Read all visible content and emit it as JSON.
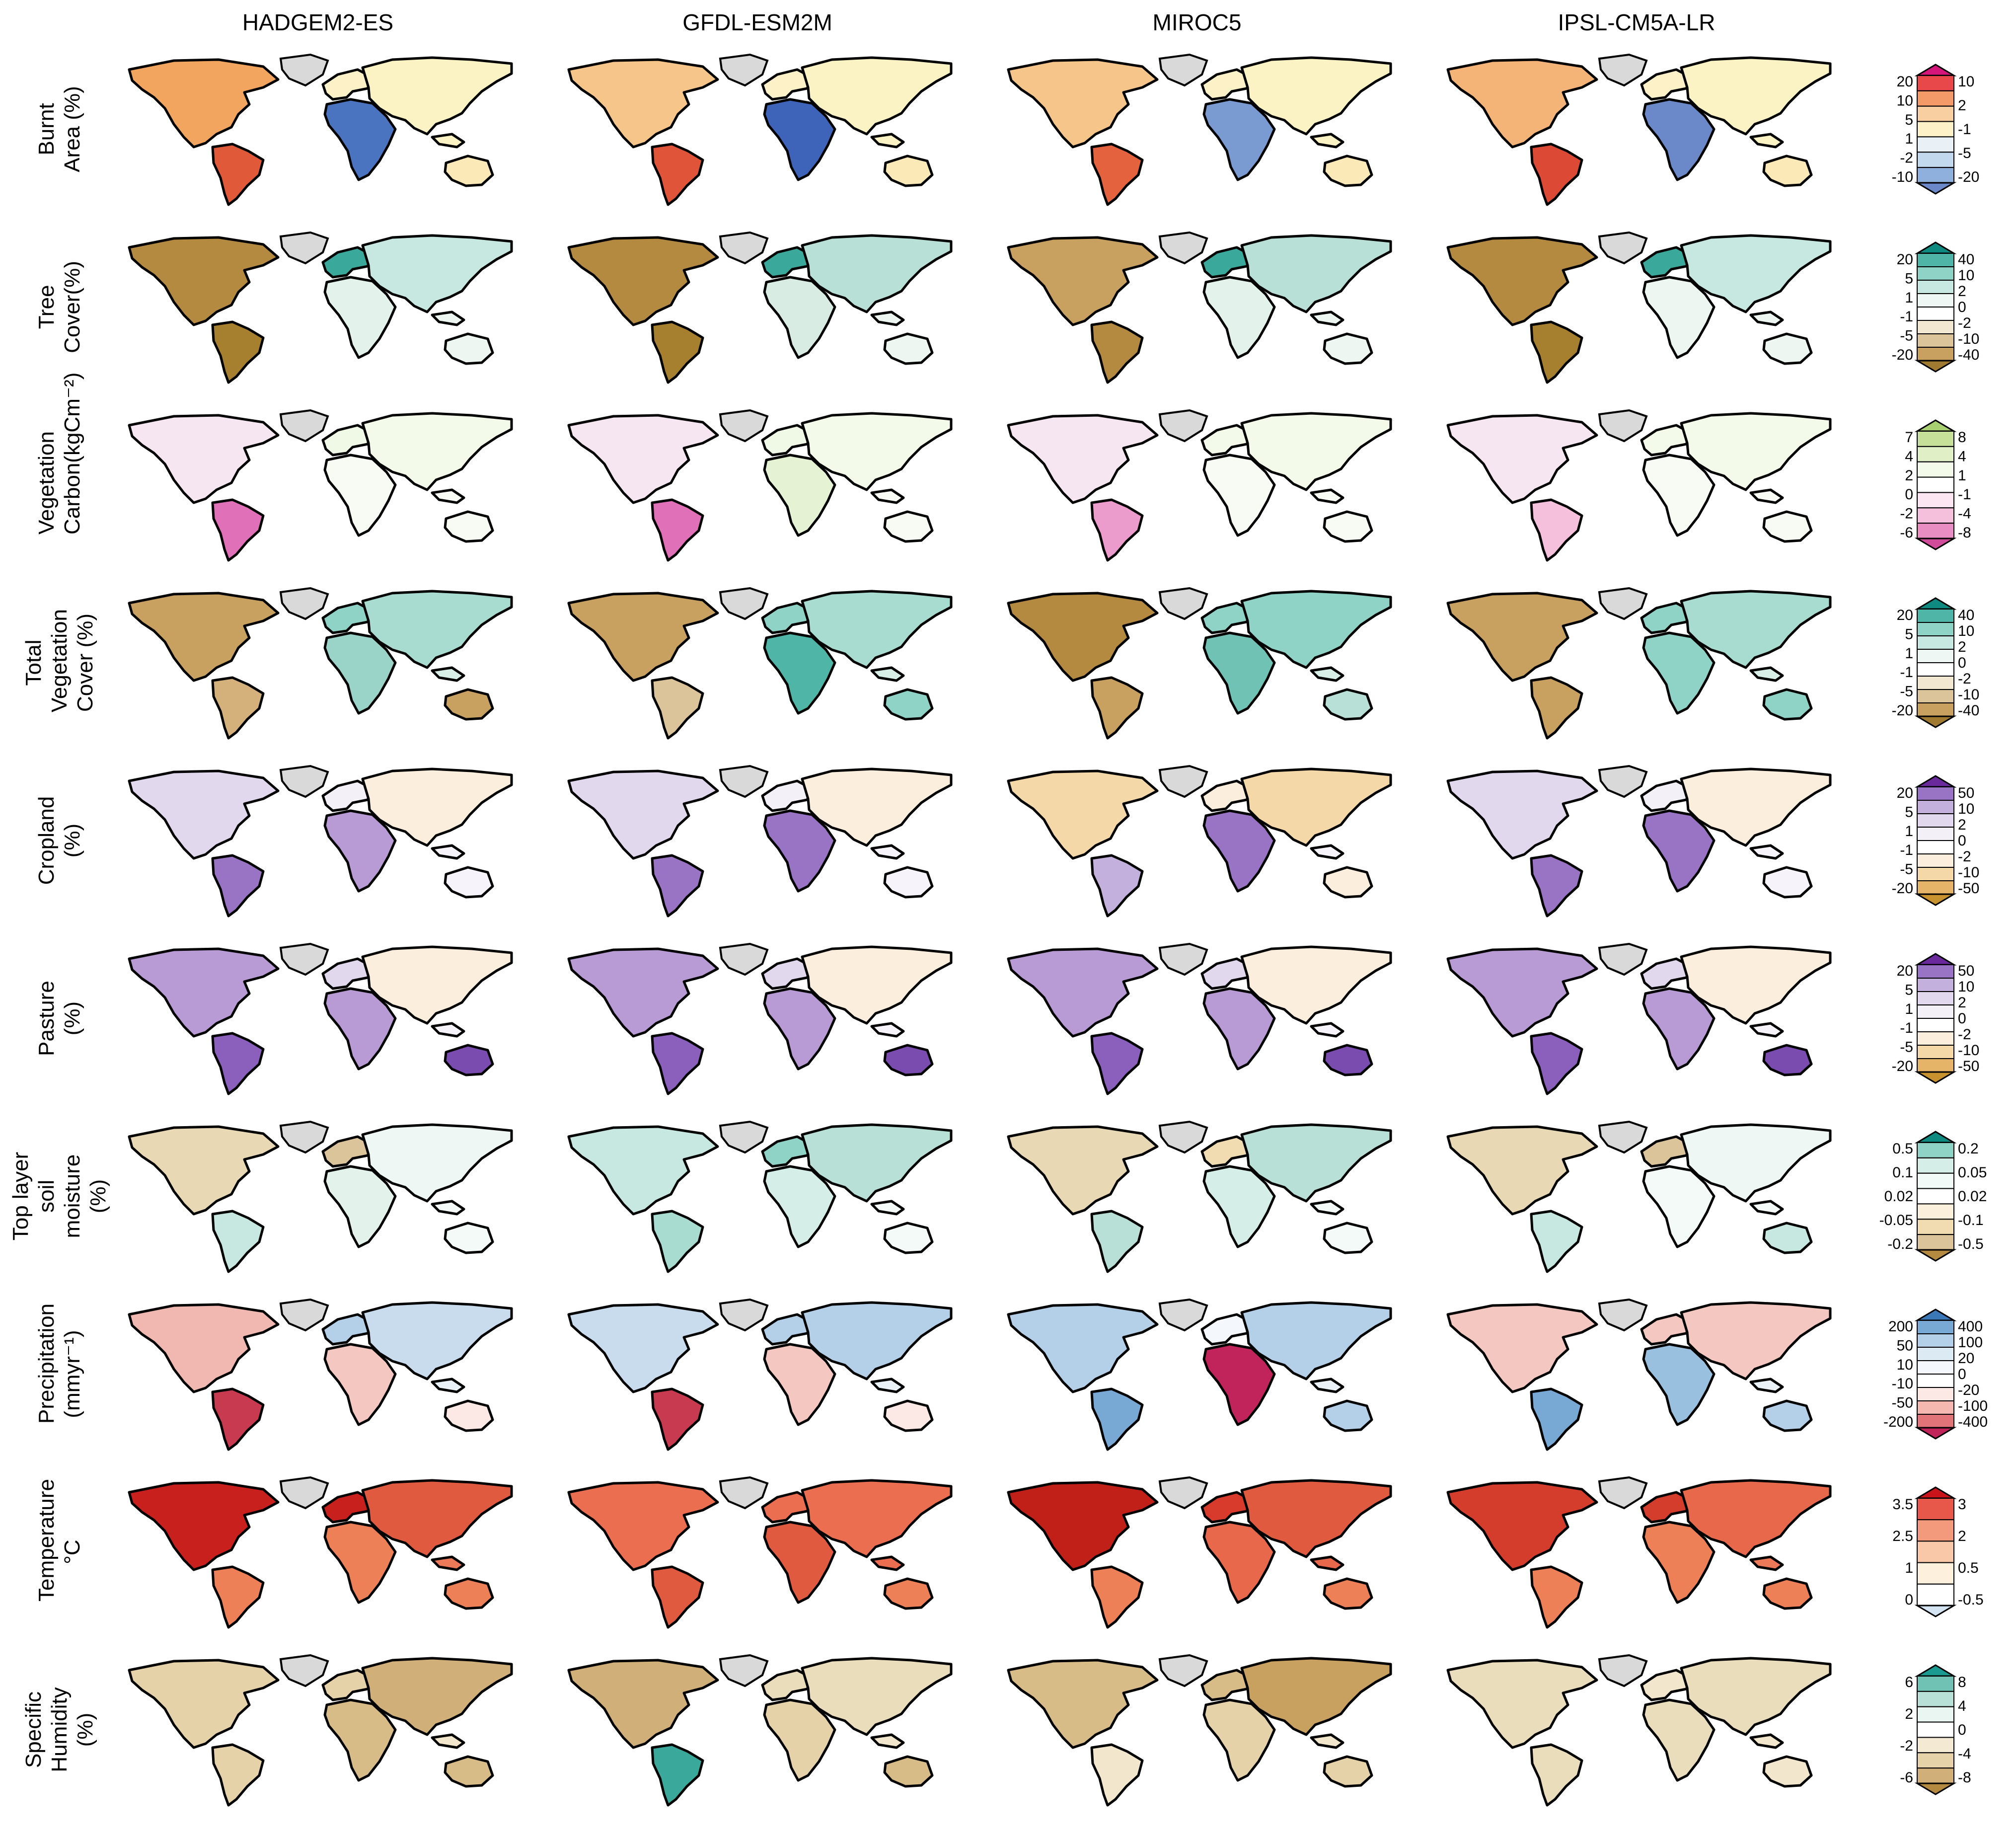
{
  "columns": [
    "HADGEM2-ES",
    "GFDL-ESM2M",
    "MIROC5",
    "IPSL-CM5A-LR"
  ],
  "rows": [
    {
      "label_lines": [
        "Burnt",
        "Area (%)"
      ],
      "legend": {
        "left": [
          "20",
          "10",
          "5",
          "1",
          "-2",
          "-10"
        ],
        "right": [
          "10",
          "2",
          "-1",
          "-5",
          "-20"
        ],
        "colors": [
          "#d4157a",
          "#e8484a",
          "#f39a68",
          "#f7cfa0",
          "#fdf1c8",
          "#e9f0f6",
          "#c2d8ec",
          "#8fb0dc",
          "#6b88c8"
        ]
      },
      "maps": [
        {
          "base": "#fcf3c4",
          "na": "#f2a55e",
          "sa": "#e05a3a",
          "af": "#4a74c0",
          "eu": "#fdf1c8",
          "asia": "#fcf3c4",
          "au": "#fbe9b8"
        },
        {
          "base": "#fcf3c4",
          "na": "#f6c58a",
          "sa": "#e0553a",
          "af": "#3d64b8",
          "eu": "#fdf1c8",
          "asia": "#fcf3c4",
          "au": "#fbe9b8"
        },
        {
          "base": "#fcf3c4",
          "na": "#f6c58a",
          "sa": "#e4633e",
          "af": "#7a9bd2",
          "eu": "#fdf1c8",
          "asia": "#fcf3c4",
          "au": "#fbe9b8"
        },
        {
          "base": "#fcf3c4",
          "na": "#f4b478",
          "sa": "#dc4a35",
          "af": "#6b88c8",
          "eu": "#fdf1c8",
          "asia": "#fcf3c4",
          "au": "#fbe9b8"
        }
      ]
    },
    {
      "label_lines": [
        "Tree",
        "Cover(%)"
      ],
      "legend": {
        "left": [
          "20",
          "5",
          "1",
          "-1",
          "-5",
          "-20"
        ],
        "right": [
          "40",
          "10",
          "2",
          "0",
          "-2",
          "-10",
          "-40"
        ],
        "colors": [
          "#0f8a80",
          "#4fb5a6",
          "#8fd2c6",
          "#c6e8e0",
          "#eef7f4",
          "#ffffff",
          "#f2e8d2",
          "#dcc49a",
          "#c8a060",
          "#a07a30"
        ]
      },
      "maps": [
        {
          "base": "#eef6f2",
          "na": "#b48a40",
          "sa": "#a6802e",
          "af": "#e4f2ec",
          "eu": "#3aa89a",
          "asia": "#c6e8e0",
          "au": "#eef6f2"
        },
        {
          "base": "#eef6f2",
          "na": "#b48a40",
          "sa": "#a6802e",
          "af": "#d8ece4",
          "eu": "#3aa89a",
          "asia": "#b8e0d6",
          "au": "#eef6f2"
        },
        {
          "base": "#eef6f2",
          "na": "#c8a060",
          "sa": "#b48a40",
          "af": "#e4f2ec",
          "eu": "#3aa89a",
          "asia": "#b8e0d6",
          "au": "#eef6f2"
        },
        {
          "base": "#eef6f2",
          "na": "#b48a40",
          "sa": "#a6802e",
          "af": "#eef6f2",
          "eu": "#3aa89a",
          "asia": "#c6e8e0",
          "au": "#eef6f2"
        }
      ]
    },
    {
      "label_lines": [
        "Vegetation",
        "Carbon(kgCm⁻²)"
      ],
      "legend": {
        "left": [
          "7",
          "4",
          "2",
          "0",
          "-2",
          "-6"
        ],
        "right": [
          "8",
          "4",
          "1",
          "-1",
          "-4",
          "-8"
        ],
        "colors": [
          "#a8d070",
          "#c6e09a",
          "#e0efc6",
          "#f4faea",
          "#ffffff",
          "#fbe6f2",
          "#f4c0dc",
          "#e88ec2",
          "#d04c9a"
        ]
      },
      "maps": [
        {
          "base": "#f8faf4",
          "na": "#f6e6f2",
          "sa": "#e070b8",
          "af": "#f8faf4",
          "eu": "#f0f8e6",
          "asia": "#f4faea",
          "au": "#f8faf4"
        },
        {
          "base": "#f8faf4",
          "na": "#f6e6f2",
          "sa": "#e070b8",
          "af": "#e6f2d4",
          "eu": "#f0f8e6",
          "asia": "#f4faea",
          "au": "#f8faf4"
        },
        {
          "base": "#f8faf4",
          "na": "#f6e6f2",
          "sa": "#ec9ccc",
          "af": "#f8faf4",
          "eu": "#f4faea",
          "asia": "#f4faea",
          "au": "#f8faf4"
        },
        {
          "base": "#f8faf4",
          "na": "#f6e6f2",
          "sa": "#f4c0dc",
          "af": "#f8faf4",
          "eu": "#f4faea",
          "asia": "#f4faea",
          "au": "#f8faf4"
        }
      ]
    },
    {
      "label_lines": [
        "Total Vegetation",
        "Cover (%)"
      ],
      "legend": {
        "left": [
          "20",
          "5",
          "1",
          "-1",
          "-5",
          "-20"
        ],
        "right": [
          "40",
          "10",
          "2",
          "0",
          "-2",
          "-10",
          "-40"
        ],
        "colors": [
          "#0f8a80",
          "#4fb5a6",
          "#8fd2c6",
          "#c6e8e0",
          "#eef7f4",
          "#ffffff",
          "#f2e8d2",
          "#dcc49a",
          "#c8a060",
          "#a07a30"
        ]
      },
      "maps": [
        {
          "base": "#d8efe8",
          "na": "#c8a060",
          "sa": "#d4b07a",
          "af": "#9ad4c8",
          "eu": "#8fd2c6",
          "asia": "#a8dcd0",
          "au": "#c8a060"
        },
        {
          "base": "#d8efe8",
          "na": "#c8a060",
          "sa": "#dcc49a",
          "af": "#4fb5a6",
          "eu": "#8fd2c6",
          "asia": "#a8dcd0",
          "au": "#8fd2c6"
        },
        {
          "base": "#d8efe8",
          "na": "#b48a40",
          "sa": "#c8a060",
          "af": "#6fc2b4",
          "eu": "#8fd2c6",
          "asia": "#8fd2c6",
          "au": "#b8e0d6"
        },
        {
          "base": "#d8efe8",
          "na": "#c8a060",
          "sa": "#c8a060",
          "af": "#8fd2c6",
          "eu": "#8fd2c6",
          "asia": "#a8dcd0",
          "au": "#8fd2c6"
        }
      ]
    },
    {
      "label_lines": [
        "Cropland",
        "(%)"
      ],
      "legend": {
        "left": [
          "20",
          "5",
          "1",
          "-1",
          "-5",
          "-20"
        ],
        "right": [
          "50",
          "10",
          "2",
          "0",
          "-2",
          "-10",
          "-50"
        ],
        "colors": [
          "#6a2a9c",
          "#9a74c4",
          "#c4b0dc",
          "#e2d8ee",
          "#f4f0f8",
          "#ffffff",
          "#fbeedc",
          "#f4d8a8",
          "#e6b468",
          "#c8922e"
        ]
      },
      "maps": [
        {
          "base": "#f6f4fa",
          "na": "#e2d8ee",
          "sa": "#9a74c4",
          "af": "#b89ad4",
          "eu": "#f4f0f8",
          "asia": "#fbeedc",
          "au": "#f6f4fa"
        },
        {
          "base": "#f6f4fa",
          "na": "#e2d8ee",
          "sa": "#9a74c4",
          "af": "#9a74c4",
          "eu": "#f4f0f8",
          "asia": "#fbeedc",
          "au": "#f6f4fa"
        },
        {
          "base": "#f6f4fa",
          "na": "#f4d8a8",
          "sa": "#c4b0dc",
          "af": "#9a74c4",
          "eu": "#fbeedc",
          "asia": "#f4d8a8",
          "au": "#fbeedc"
        },
        {
          "base": "#f6f4fa",
          "na": "#e2d8ee",
          "sa": "#9a74c4",
          "af": "#9a74c4",
          "eu": "#f4f0f8",
          "asia": "#fbeedc",
          "au": "#f6f4fa"
        }
      ]
    },
    {
      "label_lines": [
        "Pasture",
        "(%)"
      ],
      "legend": {
        "left": [
          "20",
          "5",
          "1",
          "-1",
          "-5",
          "-20"
        ],
        "right": [
          "50",
          "10",
          "2",
          "0",
          "-2",
          "-10",
          "-50"
        ],
        "colors": [
          "#6a2a9c",
          "#9a74c4",
          "#c4b0dc",
          "#e2d8ee",
          "#f4f0f8",
          "#ffffff",
          "#fbeedc",
          "#f4d8a8",
          "#e6b468",
          "#c8922e"
        ]
      },
      "maps": [
        {
          "base": "#f6f4fa",
          "na": "#b89ad4",
          "sa": "#8a60bc",
          "af": "#b89ad4",
          "eu": "#e2d8ee",
          "asia": "#fbeedc",
          "au": "#7a4cb0"
        },
        {
          "base": "#f6f4fa",
          "na": "#b89ad4",
          "sa": "#8a60bc",
          "af": "#b89ad4",
          "eu": "#e2d8ee",
          "asia": "#fbeedc",
          "au": "#7a4cb0"
        },
        {
          "base": "#f6f4fa",
          "na": "#b89ad4",
          "sa": "#8a60bc",
          "af": "#b89ad4",
          "eu": "#e2d8ee",
          "asia": "#fbeedc",
          "au": "#7a4cb0"
        },
        {
          "base": "#f6f4fa",
          "na": "#b89ad4",
          "sa": "#8a60bc",
          "af": "#b89ad4",
          "eu": "#e2d8ee",
          "asia": "#fbeedc",
          "au": "#7a4cb0"
        }
      ]
    },
    {
      "label_lines": [
        "Top layer soil",
        "moisture (%)"
      ],
      "legend": {
        "left": [
          "0.5",
          "0.1",
          "0.02",
          "-0.05",
          "-0.2"
        ],
        "right": [
          "0.2",
          "0.05",
          "0.02",
          "-0.1",
          "-0.5"
        ],
        "colors": [
          "#0f8a80",
          "#8fd2c6",
          "#d6eee8",
          "#f2faf8",
          "#ffffff",
          "#fbf0dc",
          "#f0dcb0",
          "#dcc49a",
          "#b48a40"
        ]
      },
      "maps": [
        {
          "base": "#f4faf8",
          "na": "#e8d8b4",
          "sa": "#c6e8e0",
          "af": "#e4f2ec",
          "eu": "#dcc49a",
          "asia": "#eef7f4",
          "au": "#f4faf8"
        },
        {
          "base": "#f4faf8",
          "na": "#c6e8e0",
          "sa": "#a8dcd0",
          "af": "#d6eee8",
          "eu": "#8fd2c6",
          "asia": "#b8e0d6",
          "au": "#f4faf8"
        },
        {
          "base": "#f4faf8",
          "na": "#e8d8b4",
          "sa": "#b8e0d6",
          "af": "#d6eee8",
          "eu": "#f0dcb0",
          "asia": "#b8e0d6",
          "au": "#f4faf8"
        },
        {
          "base": "#f4faf8",
          "na": "#e8d8b4",
          "sa": "#c6e8e0",
          "af": "#f4faf8",
          "eu": "#dcc49a",
          "asia": "#eef7f4",
          "au": "#c6e8e0"
        }
      ]
    },
    {
      "label_lines": [
        "Precipitation",
        "(mmyr⁻¹)"
      ],
      "legend": {
        "left": [
          "200",
          "50",
          "10",
          "-10",
          "-50",
          "-200"
        ],
        "right": [
          "400",
          "100",
          "20",
          "0",
          "-20",
          "-100",
          "-400"
        ],
        "colors": [
          "#3a78b8",
          "#78a8d4",
          "#b4d0e8",
          "#dceaf4",
          "#f4f8fc",
          "#ffffff",
          "#fce8e4",
          "#f4b8b0",
          "#e07478",
          "#c0245a"
        ]
      },
      "maps": [
        {
          "base": "#eaf2f8",
          "na": "#f0b8b0",
          "sa": "#c83a50",
          "af": "#f4c8c0",
          "eu": "#b4d0e8",
          "asia": "#c8dcee",
          "au": "#fce8e4"
        },
        {
          "base": "#eaf2f8",
          "na": "#c8dcee",
          "sa": "#c83a50",
          "af": "#f4c8c0",
          "eu": "#b4d0e8",
          "asia": "#b4d0e8",
          "au": "#fce8e4"
        },
        {
          "base": "#eaf2f8",
          "na": "#b4d0e8",
          "sa": "#78a8d4",
          "af": "#c0245a",
          "eu": "#f4f8fc",
          "asia": "#b4d0e8",
          "au": "#b4d0e8"
        },
        {
          "base": "#eaf2f8",
          "na": "#f4c8c0",
          "sa": "#78a8d4",
          "af": "#9ac0e0",
          "eu": "#f4c8c0",
          "asia": "#f4c8c0",
          "au": "#b4d0e8"
        }
      ]
    },
    {
      "label_lines": [
        "Temperature",
        "°C"
      ],
      "legend": {
        "left": [
          "3.5",
          "2.5",
          "1",
          "0"
        ],
        "right": [
          "3",
          "2",
          "0.5",
          "-0.5"
        ],
        "colors": [
          "#c8141a",
          "#e8584a",
          "#f49a7c",
          "#f8c8a8",
          "#fdf0dc",
          "#ffffff",
          "#d4e4f2"
        ]
      },
      "maps": [
        {
          "base": "#ec7a58",
          "na": "#c8201c",
          "sa": "#ee8058",
          "af": "#ee8058",
          "eu": "#c8201c",
          "asia": "#e05a40",
          "au": "#ee8058"
        },
        {
          "base": "#ec6e50",
          "na": "#ec6e50",
          "sa": "#e05a40",
          "af": "#e05a40",
          "eu": "#ec6e50",
          "asia": "#ec6e50",
          "au": "#ee8058"
        },
        {
          "base": "#e8684c",
          "na": "#c02018",
          "sa": "#ee8058",
          "af": "#e8684c",
          "eu": "#d83a2c",
          "asia": "#e05a40",
          "au": "#ee8058"
        },
        {
          "base": "#ec7a58",
          "na": "#d43c2c",
          "sa": "#ee8058",
          "af": "#ee8058",
          "eu": "#d43c2c",
          "asia": "#e8684c",
          "au": "#ee8058"
        }
      ]
    },
    {
      "label_lines": [
        "Specific",
        "Humidity (%)"
      ],
      "legend": {
        "left": [
          "6",
          "2",
          "-2",
          "-6"
        ],
        "right": [
          "8",
          "4",
          "0",
          "-4",
          "-8"
        ],
        "colors": [
          "#1a9a90",
          "#6fc2b4",
          "#b8e0d6",
          "#eaf6f2",
          "#ffffff",
          "#f4ead4",
          "#e6d2a8",
          "#d0b078",
          "#b48a40"
        ]
      },
      "maps": [
        {
          "base": "#f2e6cc",
          "na": "#e6d2a8",
          "sa": "#e6d2a8",
          "af": "#d8bc88",
          "eu": "#e6d2a8",
          "asia": "#d0b078",
          "au": "#d8bc88"
        },
        {
          "base": "#f2e6cc",
          "na": "#d0b078",
          "sa": "#3aa89a",
          "af": "#e6d2a8",
          "eu": "#eaddbc",
          "asia": "#eaddbc",
          "au": "#d8bc88"
        },
        {
          "base": "#f2e6cc",
          "na": "#d8bc88",
          "sa": "#f2e6cc",
          "af": "#e6d2a8",
          "eu": "#d8bc88",
          "asia": "#c8a060",
          "au": "#e6d2a8"
        },
        {
          "base": "#f2e6cc",
          "na": "#eaddbc",
          "sa": "#eaddbc",
          "af": "#eaddbc",
          "eu": "#f2e6cc",
          "asia": "#eaddbc",
          "au": "#f2e6cc"
        }
      ]
    }
  ]
}
